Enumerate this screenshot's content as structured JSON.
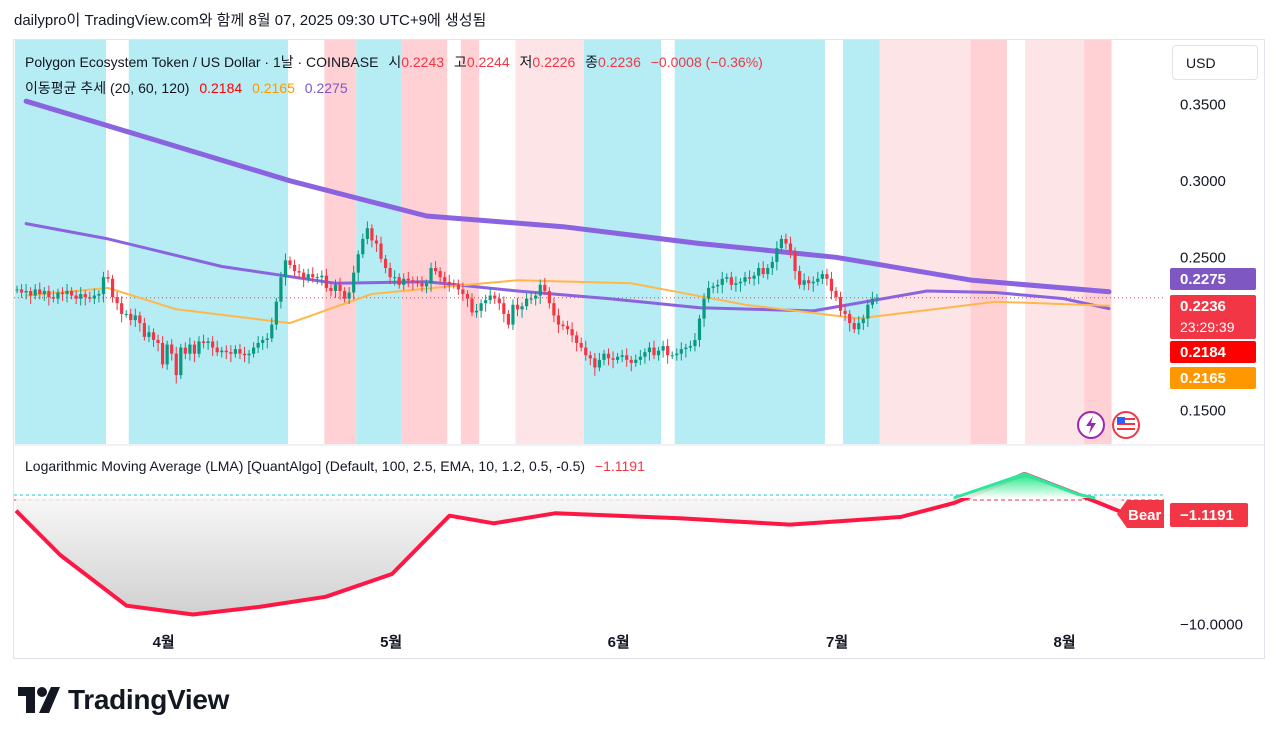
{
  "header": {
    "text": "dailypro이 TradingView.com와 함께 8월 07, 2025 09:30 UTC+9에 생성됨"
  },
  "legend": {
    "symbol": "Polygon Ecosystem Token / US Dollar · 1날 · COINBASE",
    "o_label": "시",
    "o": "0.2243",
    "h_label": "고",
    "h": "0.2244",
    "l_label": "저",
    "l": "0.2226",
    "c_label": "종",
    "c": "0.2236",
    "change": "−0.0008 (−0.36%)",
    "ma_title": "이동평균 추세 (20, 60, 120)",
    "ma20": "0.2184",
    "ma60": "0.2165",
    "ma120": "0.2275"
  },
  "lma": {
    "title": "Logarithmic Moving Average (LMA) [QuantAlgo] (Default, 100, 2.5, EMA, 10, 1.2, 0.5, -0.5)",
    "value": "−1.1191",
    "bear_label": "Bear"
  },
  "currency_button": "USD",
  "brand": "TradingView",
  "colors": {
    "up": "#089981",
    "down": "#f23645",
    "ma20": "#ff0000",
    "ma60": "#ffb74d",
    "ma120": "#7e57c2",
    "bull_bg": "#b2ebf2",
    "bear_bg": "#ffcdd2"
  },
  "chart_data": {
    "type": "candlestick",
    "x_tick_labels": [
      "4월",
      "5월",
      "6월",
      "7월",
      "8월"
    ],
    "y_tick_labels": [
      "0.3500",
      "0.3000",
      "0.2500",
      "0.1500"
    ],
    "y_range": [
      0.128,
      0.392
    ],
    "price_badges": [
      {
        "value": "0.2275",
        "color": "#7e57c2"
      },
      {
        "value": "0.2236",
        "color": "#f23645",
        "sub": "23:29:39"
      },
      {
        "value": "0.2184",
        "color": "#ff0000"
      },
      {
        "value": "0.2165",
        "color": "#ff9800"
      }
    ],
    "current_price": 0.2236,
    "closes": [
      0.229,
      0.227,
      0.228,
      0.225,
      0.229,
      0.226,
      0.228,
      0.224,
      0.223,
      0.227,
      0.226,
      0.228,
      0.225,
      0.223,
      0.226,
      0.224,
      0.223,
      0.225,
      0.226,
      0.237,
      0.236,
      0.224,
      0.22,
      0.213,
      0.213,
      0.209,
      0.212,
      0.207,
      0.198,
      0.201,
      0.196,
      0.194,
      0.18,
      0.193,
      0.187,
      0.173,
      0.191,
      0.187,
      0.193,
      0.187,
      0.195,
      0.194,
      0.195,
      0.191,
      0.188,
      0.189,
      0.188,
      0.187,
      0.19,
      0.187,
      0.186,
      0.187,
      0.191,
      0.194,
      0.196,
      0.197,
      0.206,
      0.221,
      0.237,
      0.248,
      0.245,
      0.241,
      0.24,
      0.236,
      0.239,
      0.237,
      0.237,
      0.238,
      0.23,
      0.228,
      0.232,
      0.228,
      0.223,
      0.227,
      0.24,
      0.252,
      0.262,
      0.269,
      0.261,
      0.259,
      0.249,
      0.243,
      0.237,
      0.237,
      0.232,
      0.236,
      0.235,
      0.234,
      0.233,
      0.231,
      0.233,
      0.243,
      0.241,
      0.237,
      0.234,
      0.233,
      0.232,
      0.229,
      0.226,
      0.223,
      0.214,
      0.215,
      0.22,
      0.222,
      0.225,
      0.223,
      0.22,
      0.213,
      0.206,
      0.219,
      0.216,
      0.218,
      0.223,
      0.223,
      0.225,
      0.232,
      0.228,
      0.22,
      0.212,
      0.206,
      0.205,
      0.203,
      0.199,
      0.194,
      0.191,
      0.186,
      0.184,
      0.178,
      0.183,
      0.187,
      0.184,
      0.183,
      0.185,
      0.186,
      0.183,
      0.181,
      0.183,
      0.185,
      0.188,
      0.191,
      0.186,
      0.189,
      0.192,
      0.186,
      0.186,
      0.187,
      0.19,
      0.191,
      0.192,
      0.196,
      0.21,
      0.223,
      0.23,
      0.231,
      0.232,
      0.236,
      0.237,
      0.232,
      0.233,
      0.234,
      0.237,
      0.236,
      0.238,
      0.243,
      0.239,
      0.243,
      0.247,
      0.256,
      0.262,
      0.259,
      0.254,
      0.241,
      0.232,
      0.235,
      0.233,
      0.234,
      0.236,
      0.239,
      0.236,
      0.228,
      0.224,
      0.215,
      0.213,
      0.207,
      0.203,
      0.207,
      0.21,
      0.219,
      0.223,
      0.2236
    ],
    "ma_20_line": [
      [
        2,
        0.225
      ],
      [
        20,
        0.23
      ],
      [
        35,
        0.216
      ],
      [
        60,
        0.207
      ],
      [
        78,
        0.226
      ],
      [
        95,
        0.231
      ],
      [
        110,
        0.235
      ],
      [
        135,
        0.233
      ],
      [
        160,
        0.219
      ],
      [
        185,
        0.21
      ],
      [
        215,
        0.221
      ],
      [
        240,
        0.2184
      ]
    ],
    "ma_60_line": [
      [
        2,
        0.272
      ],
      [
        20,
        0.262
      ],
      [
        45,
        0.244
      ],
      [
        70,
        0.233
      ],
      [
        90,
        0.234
      ],
      [
        110,
        0.228
      ],
      [
        130,
        0.223
      ],
      [
        150,
        0.217
      ],
      [
        175,
        0.215
      ],
      [
        200,
        0.228
      ],
      [
        215,
        0.227
      ],
      [
        230,
        0.223
      ],
      [
        240,
        0.2165
      ]
    ],
    "ma_120_line": [
      [
        2,
        0.352
      ],
      [
        30,
        0.327
      ],
      [
        60,
        0.3
      ],
      [
        90,
        0.277
      ],
      [
        120,
        0.27
      ],
      [
        150,
        0.259
      ],
      [
        180,
        0.25
      ],
      [
        210,
        0.235
      ],
      [
        240,
        0.2275
      ]
    ],
    "lma_series": [
      [
        0,
        -1.0
      ],
      [
        10,
        -4.5
      ],
      [
        25,
        -8.5
      ],
      [
        40,
        -9.2
      ],
      [
        55,
        -8.6
      ],
      [
        70,
        -7.8
      ],
      [
        85,
        -6.0
      ],
      [
        98,
        -1.4
      ],
      [
        108,
        -2.0
      ],
      [
        122,
        -1.2
      ],
      [
        150,
        -1.6
      ],
      [
        175,
        -2.1
      ],
      [
        200,
        -1.5
      ],
      [
        212,
        -0.4
      ],
      [
        228,
        1.9
      ],
      [
        240,
        0.3
      ],
      [
        250,
        -1.1191
      ]
    ],
    "lma_y_labels": [
      "−10.0000"
    ],
    "lma_y_range": [
      -12,
      3
    ]
  }
}
